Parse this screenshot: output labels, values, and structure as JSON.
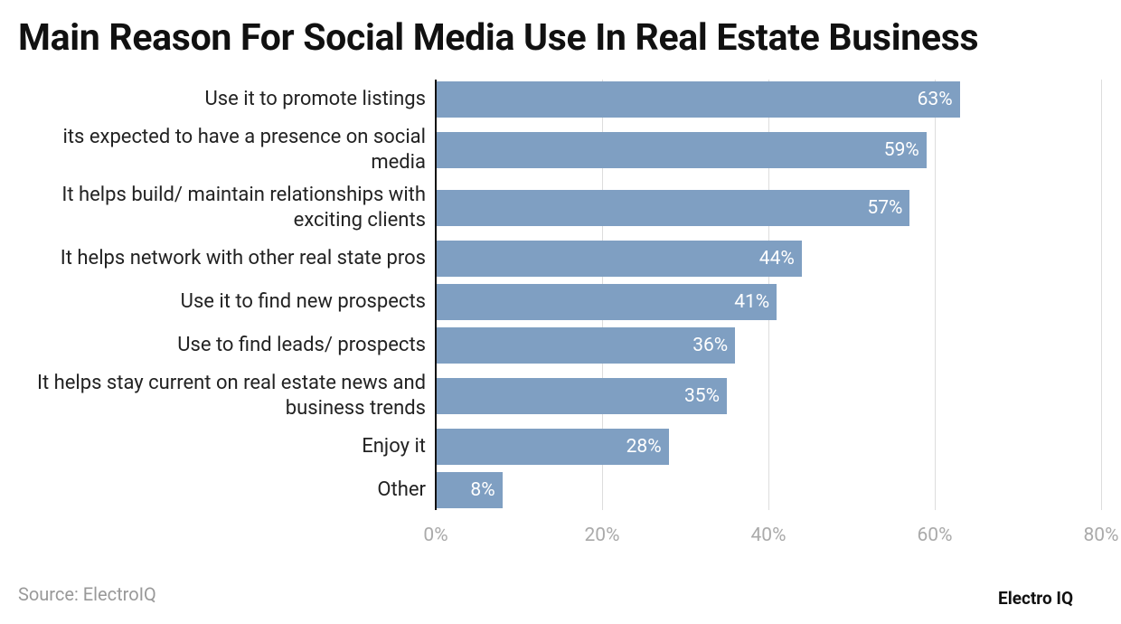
{
  "chart_data": {
    "type": "barh",
    "title": "Main Reason For Social Media Use In Real Estate Business",
    "categories": [
      "Use it to promote listings",
      "its expected to have a presence on social media",
      "It helps build/ maintain relationships with exciting clients",
      "It helps network with other real state pros",
      "Use it to find new prospects",
      "Use to find leads/ prospects",
      "It helps stay current on real estate news and business trends",
      "Enjoy it",
      "Other"
    ],
    "values": [
      63,
      59,
      57,
      44,
      41,
      36,
      35,
      28,
      8
    ],
    "value_labels": [
      "63%",
      "59%",
      "57%",
      "44%",
      "41%",
      "36%",
      "35%",
      "28%",
      "8%"
    ],
    "color": "#7f9fc2",
    "xlim": [
      0,
      80
    ],
    "xticks": [
      {
        "value": 0,
        "label": "0%"
      },
      {
        "value": 20,
        "label": "20%"
      },
      {
        "value": 40,
        "label": "40%"
      },
      {
        "value": 60,
        "label": "60%"
      },
      {
        "value": 80,
        "label": "80%"
      }
    ],
    "grid": true,
    "source": "Source: ElectroIQ",
    "brand": "Electro IQ"
  }
}
